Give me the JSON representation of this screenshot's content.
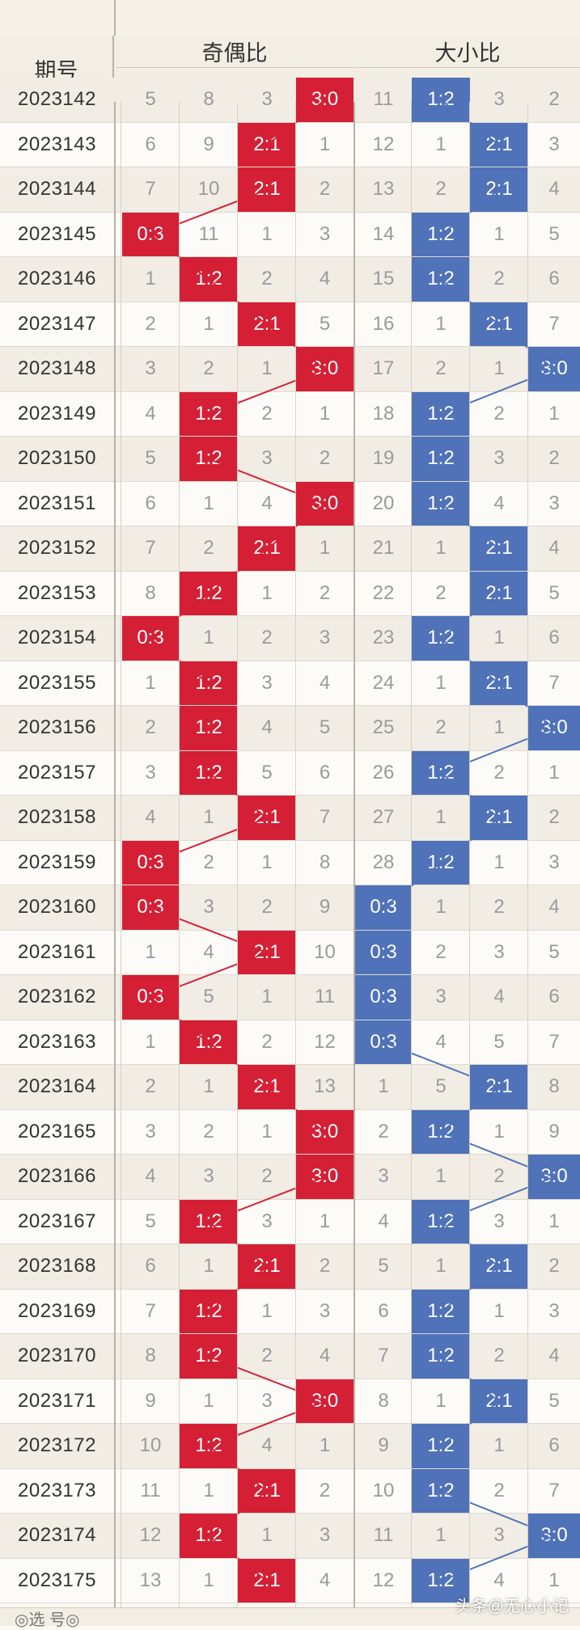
{
  "header": {
    "period_label": "期号",
    "group_odd_even": "奇偶比",
    "group_big_small": "大小比",
    "sub_labels": [
      "0:3",
      "1:2",
      "2:1",
      "3:0",
      "0:3",
      "1:2",
      "2:1",
      "3:0"
    ]
  },
  "colors": {
    "odd_even_hit": "#d41f35",
    "big_small_hit": "#4f72b8"
  },
  "top_partial_row": {
    "period": "2023142",
    "cells": [
      "5",
      "8",
      "3",
      "3:0",
      "11",
      "1:2",
      "3",
      "2"
    ],
    "oe_hit": 3,
    "bs_hit": 1
  },
  "rows": [
    {
      "period": "2023143",
      "cells": [
        "6",
        "9",
        "2:1",
        "1",
        "12",
        "1",
        "2:1",
        "3"
      ],
      "oe_hit": 2,
      "bs_hit": 2
    },
    {
      "period": "2023144",
      "cells": [
        "7",
        "10",
        "2:1",
        "2",
        "13",
        "2",
        "2:1",
        "4"
      ],
      "oe_hit": 2,
      "bs_hit": 2
    },
    {
      "period": "2023145",
      "cells": [
        "0:3",
        "11",
        "1",
        "3",
        "14",
        "1:2",
        "1",
        "5"
      ],
      "oe_hit": 0,
      "bs_hit": 1
    },
    {
      "period": "2023146",
      "cells": [
        "1",
        "1:2",
        "2",
        "4",
        "15",
        "1:2",
        "2",
        "6"
      ],
      "oe_hit": 1,
      "bs_hit": 1
    },
    {
      "period": "2023147",
      "cells": [
        "2",
        "1",
        "2:1",
        "5",
        "16",
        "1",
        "2:1",
        "7"
      ],
      "oe_hit": 2,
      "bs_hit": 2
    },
    {
      "period": "2023148",
      "cells": [
        "3",
        "2",
        "1",
        "3:0",
        "17",
        "2",
        "1",
        "3:0"
      ],
      "oe_hit": 3,
      "bs_hit": 3
    },
    {
      "period": "2023149",
      "cells": [
        "4",
        "1:2",
        "2",
        "1",
        "18",
        "1:2",
        "2",
        "1"
      ],
      "oe_hit": 1,
      "bs_hit": 1
    },
    {
      "period": "2023150",
      "cells": [
        "5",
        "1:2",
        "3",
        "2",
        "19",
        "1:2",
        "3",
        "2"
      ],
      "oe_hit": 1,
      "bs_hit": 1
    },
    {
      "period": "2023151",
      "cells": [
        "6",
        "1",
        "4",
        "3:0",
        "20",
        "1:2",
        "4",
        "3"
      ],
      "oe_hit": 3,
      "bs_hit": 1
    },
    {
      "period": "2023152",
      "cells": [
        "7",
        "2",
        "2:1",
        "1",
        "21",
        "1",
        "2:1",
        "4"
      ],
      "oe_hit": 2,
      "bs_hit": 2
    },
    {
      "period": "2023153",
      "cells": [
        "8",
        "1:2",
        "1",
        "2",
        "22",
        "2",
        "2:1",
        "5"
      ],
      "oe_hit": 1,
      "bs_hit": 2
    },
    {
      "period": "2023154",
      "cells": [
        "0:3",
        "1",
        "2",
        "3",
        "23",
        "1:2",
        "1",
        "6"
      ],
      "oe_hit": 0,
      "bs_hit": 1
    },
    {
      "period": "2023155",
      "cells": [
        "1",
        "1:2",
        "3",
        "4",
        "24",
        "1",
        "2:1",
        "7"
      ],
      "oe_hit": 1,
      "bs_hit": 2
    },
    {
      "period": "2023156",
      "cells": [
        "2",
        "1:2",
        "4",
        "5",
        "25",
        "2",
        "1",
        "3:0"
      ],
      "oe_hit": 1,
      "bs_hit": 3
    },
    {
      "period": "2023157",
      "cells": [
        "3",
        "1:2",
        "5",
        "6",
        "26",
        "1:2",
        "2",
        "1"
      ],
      "oe_hit": 1,
      "bs_hit": 1
    },
    {
      "period": "2023158",
      "cells": [
        "4",
        "1",
        "2:1",
        "7",
        "27",
        "1",
        "2:1",
        "2"
      ],
      "oe_hit": 2,
      "bs_hit": 2
    },
    {
      "period": "2023159",
      "cells": [
        "0:3",
        "2",
        "1",
        "8",
        "28",
        "1:2",
        "1",
        "3"
      ],
      "oe_hit": 0,
      "bs_hit": 1
    },
    {
      "period": "2023160",
      "cells": [
        "0:3",
        "3",
        "2",
        "9",
        "0:3",
        "1",
        "2",
        "4"
      ],
      "oe_hit": 0,
      "bs_hit": 0
    },
    {
      "period": "2023161",
      "cells": [
        "1",
        "4",
        "2:1",
        "10",
        "0:3",
        "2",
        "3",
        "5"
      ],
      "oe_hit": 2,
      "bs_hit": 0
    },
    {
      "period": "2023162",
      "cells": [
        "0:3",
        "5",
        "1",
        "11",
        "0:3",
        "3",
        "4",
        "6"
      ],
      "oe_hit": 0,
      "bs_hit": 0
    },
    {
      "period": "2023163",
      "cells": [
        "1",
        "1:2",
        "2",
        "12",
        "0:3",
        "4",
        "5",
        "7"
      ],
      "oe_hit": 1,
      "bs_hit": 0
    },
    {
      "period": "2023164",
      "cells": [
        "2",
        "1",
        "2:1",
        "13",
        "1",
        "5",
        "2:1",
        "8"
      ],
      "oe_hit": 2,
      "bs_hit": 2
    },
    {
      "period": "2023165",
      "cells": [
        "3",
        "2",
        "1",
        "3:0",
        "2",
        "1:2",
        "1",
        "9"
      ],
      "oe_hit": 3,
      "bs_hit": 1
    },
    {
      "period": "2023166",
      "cells": [
        "4",
        "3",
        "2",
        "3:0",
        "3",
        "1",
        "2",
        "3:0"
      ],
      "oe_hit": 3,
      "bs_hit": 3
    },
    {
      "period": "2023167",
      "cells": [
        "5",
        "1:2",
        "3",
        "1",
        "4",
        "1:2",
        "3",
        "1"
      ],
      "oe_hit": 1,
      "bs_hit": 1
    },
    {
      "period": "2023168",
      "cells": [
        "6",
        "1",
        "2:1",
        "2",
        "5",
        "1",
        "2:1",
        "2"
      ],
      "oe_hit": 2,
      "bs_hit": 2
    },
    {
      "period": "2023169",
      "cells": [
        "7",
        "1:2",
        "1",
        "3",
        "6",
        "1:2",
        "1",
        "3"
      ],
      "oe_hit": 1,
      "bs_hit": 1
    },
    {
      "period": "2023170",
      "cells": [
        "8",
        "1:2",
        "2",
        "4",
        "7",
        "1:2",
        "2",
        "4"
      ],
      "oe_hit": 1,
      "bs_hit": 1
    },
    {
      "period": "2023171",
      "cells": [
        "9",
        "1",
        "3",
        "3:0",
        "8",
        "1",
        "2:1",
        "5"
      ],
      "oe_hit": 3,
      "bs_hit": 2
    },
    {
      "period": "2023172",
      "cells": [
        "10",
        "1:2",
        "4",
        "1",
        "9",
        "1:2",
        "1",
        "6"
      ],
      "oe_hit": 1,
      "bs_hit": 1
    },
    {
      "period": "2023173",
      "cells": [
        "11",
        "1",
        "2:1",
        "2",
        "10",
        "1:2",
        "2",
        "7"
      ],
      "oe_hit": 2,
      "bs_hit": 1
    },
    {
      "period": "2023174",
      "cells": [
        "12",
        "1:2",
        "1",
        "3",
        "11",
        "1",
        "3",
        "3:0"
      ],
      "oe_hit": 1,
      "bs_hit": 3
    },
    {
      "period": "2023175",
      "cells": [
        "13",
        "1",
        "2:1",
        "4",
        "12",
        "1:2",
        "4",
        "1"
      ],
      "oe_hit": 2,
      "bs_hit": 1
    }
  ],
  "bottom_partial_text": "◎选 号◎",
  "watermark": "头条@无心小记"
}
